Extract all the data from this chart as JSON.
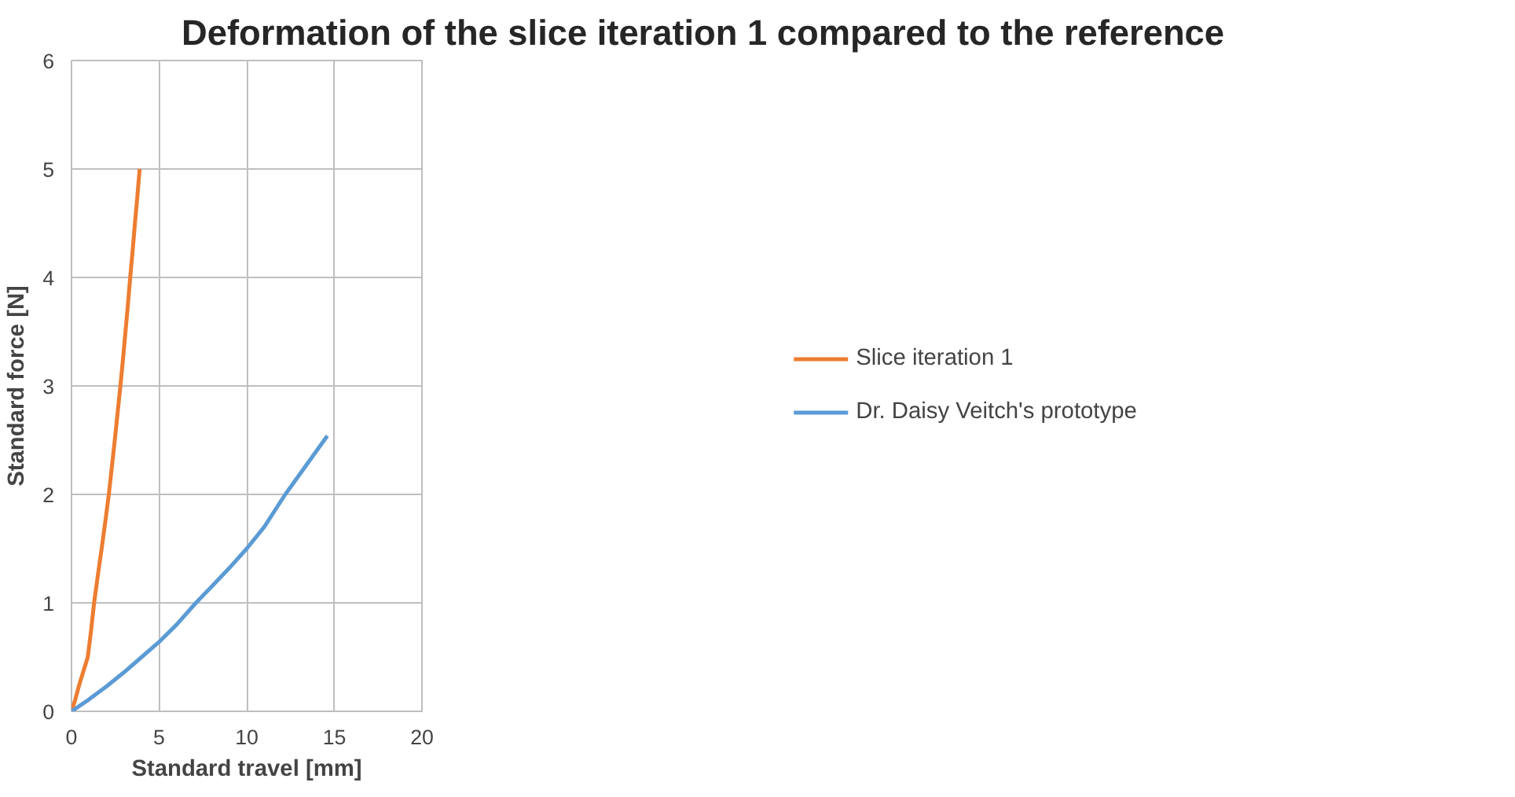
{
  "chart_data": {
    "type": "line",
    "title": "Deformation of the slice iteration 1 compared to the reference",
    "xlabel": "Standard travel [mm]",
    "ylabel": "Standard force [N]",
    "xlim": [
      0,
      20
    ],
    "xticks": [
      0,
      5,
      10,
      15,
      20
    ],
    "ylim": [
      0,
      6
    ],
    "yticks": [
      0,
      1,
      2,
      3,
      4,
      5,
      6
    ],
    "grid": true,
    "legend": "right",
    "marker": "none",
    "line_style": "solid",
    "series": [
      {
        "name": "Slice iteration 1",
        "color": "#ed7d31",
        "x": [
          0,
          0.2,
          0.45,
          0.7,
          0.93,
          1.12,
          1.29,
          1.5,
          1.72,
          1.93,
          2.13,
          2.3,
          2.47,
          2.63,
          2.79,
          2.94,
          3.08,
          3.22,
          3.35,
          3.49,
          3.62,
          3.76,
          3.89
        ],
        "values": [
          0,
          0.1,
          0.25,
          0.38,
          0.5,
          0.75,
          1,
          1.25,
          1.5,
          1.75,
          2,
          2.25,
          2.5,
          2.75,
          3,
          3.25,
          3.5,
          3.75,
          4,
          4.25,
          4.5,
          4.75,
          5
        ]
      },
      {
        "name": "Dr. Daisy Veitch's prototype",
        "color": "#5b9bd5",
        "x": [
          0,
          1,
          2,
          3,
          4,
          5,
          6,
          7.1,
          8,
          9,
          10,
          11,
          12.2,
          13.4,
          14.6
        ],
        "values": [
          0,
          0.11,
          0.23,
          0.36,
          0.5,
          0.64,
          0.8,
          1,
          1.15,
          1.32,
          1.5,
          1.7,
          2,
          2.27,
          2.54
        ]
      }
    ]
  }
}
